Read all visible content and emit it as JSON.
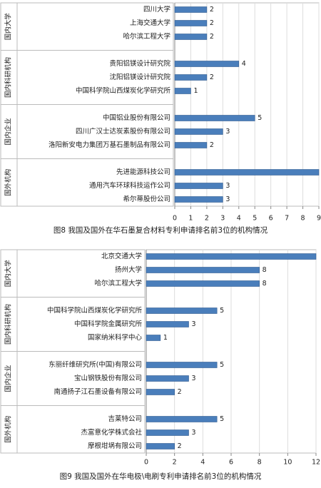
{
  "chart_data": [
    {
      "type": "bar",
      "orientation": "horizontal",
      "title": "图8 我国及国外在华石墨复合材料专利申请排名前3位的机构情况",
      "color": "#4a7ebb",
      "grid": true,
      "xlim": [
        0,
        9
      ],
      "xticks": [
        0,
        1,
        2,
        3,
        4,
        5,
        6,
        7,
        8,
        9
      ],
      "groups": [
        {
          "name": "国内大学",
          "categories": [
            "四川大学",
            "上海交通大学",
            "哈尔滨工程大学"
          ],
          "values": [
            2,
            2,
            2
          ]
        },
        {
          "name": "国内科研机构",
          "categories": [
            "贵阳铝镁设计研究院",
            "沈阳铝镁设计研究院",
            "中国科学院山西煤炭化学研究所"
          ],
          "values": [
            4,
            2,
            1
          ]
        },
        {
          "name": "国内企业",
          "categories": [
            "中国铝业股份有限公司",
            "四川广汉士达炭素股份有限公司",
            "洛阳新安电力集团万基石墨制品有限公司"
          ],
          "values": [
            5,
            3,
            2
          ]
        },
        {
          "name": "国外机构",
          "categories": [
            "先进能源科技公司",
            "通用汽车环球科技运作公司",
            "希尔蒂股份公司"
          ],
          "values": [
            9,
            3,
            3
          ]
        }
      ]
    },
    {
      "type": "bar",
      "orientation": "horizontal",
      "title": "图9 我国及国外在华电极\\电刷专利申请排名前3位的机构情况",
      "color": "#4a7ebb",
      "grid": true,
      "xlim": [
        0,
        12
      ],
      "xticks": [
        0,
        2,
        4,
        6,
        8,
        10,
        12
      ],
      "groups": [
        {
          "name": "国内大学",
          "categories": [
            "北京交通大学",
            "扬州大学",
            "哈尔滨工程大学"
          ],
          "values": [
            12,
            8,
            8
          ]
        },
        {
          "name": "国内科研机构",
          "categories": [
            "中国科学院山西煤炭化学研究所",
            "中国科学院金属研究所",
            "国家纳米科学中心"
          ],
          "values": [
            5,
            3,
            1
          ]
        },
        {
          "name": "国内企业",
          "categories": [
            "东丽纤维研究所(中国)有限公司",
            "宝山钢铁股份有限公司",
            "南通扬子江石墨设备有限公司"
          ],
          "values": [
            5,
            3,
            2
          ]
        },
        {
          "name": "国外机构",
          "categories": [
            "吉莱特公司",
            "杰富意化学株式会社",
            "摩根坩埚有限公司"
          ],
          "values": [
            5,
            3,
            2
          ]
        }
      ]
    }
  ]
}
